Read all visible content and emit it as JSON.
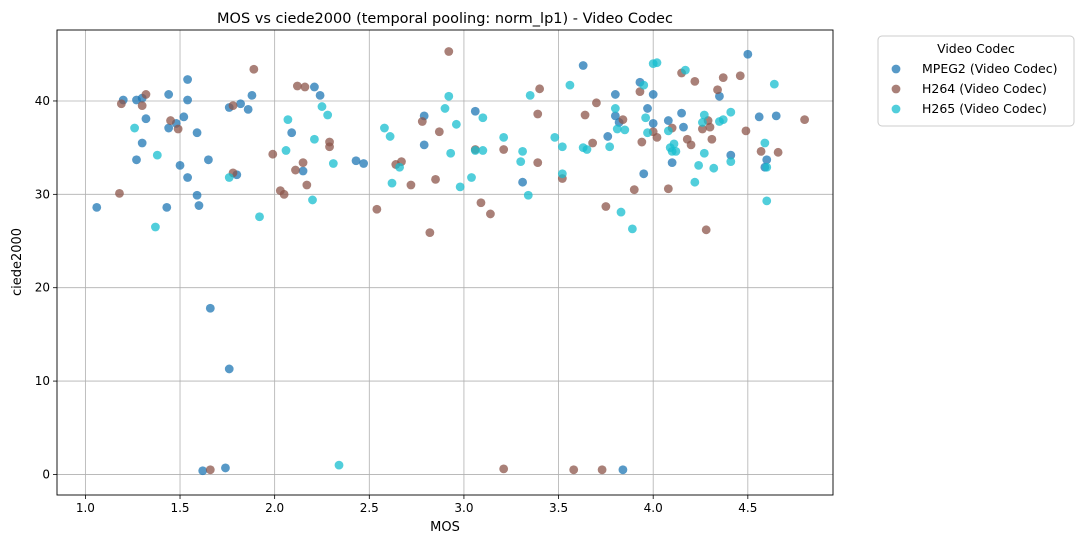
{
  "chart_data": {
    "type": "scatter",
    "title": "MOS vs ciede2000 (temporal pooling: norm_lp1) - Video Codec",
    "xlabel": "MOS",
    "ylabel": "ciede2000",
    "xlim": [
      0.85,
      4.95
    ],
    "ylim": [
      -2.2,
      47.6
    ],
    "xticks": [
      1.0,
      1.5,
      2.0,
      2.5,
      3.0,
      3.5,
      4.0,
      4.5
    ],
    "xtick_labels": [
      "1.0",
      "1.5",
      "2.0",
      "2.5",
      "3.0",
      "3.5",
      "4.0",
      "4.5"
    ],
    "yticks": [
      0,
      10,
      20,
      30,
      40
    ],
    "ytick_labels": [
      "0",
      "10",
      "20",
      "30",
      "40"
    ],
    "grid": true,
    "legend": {
      "title": "Video Codec",
      "placement": "outside-top-right"
    },
    "series": [
      {
        "name": "MPEG2 (Video Codec)",
        "color": "#1f77b4",
        "points": [
          [
            1.06,
            28.6
          ],
          [
            1.2,
            40.1
          ],
          [
            1.27,
            40.1
          ],
          [
            1.27,
            33.7
          ],
          [
            1.3,
            35.5
          ],
          [
            1.3,
            40.3
          ],
          [
            1.32,
            38.1
          ],
          [
            1.43,
            28.6
          ],
          [
            1.44,
            40.7
          ],
          [
            1.44,
            37.1
          ],
          [
            1.48,
            37.6
          ],
          [
            1.5,
            33.1
          ],
          [
            1.52,
            38.3
          ],
          [
            1.54,
            42.3
          ],
          [
            1.54,
            40.1
          ],
          [
            1.54,
            31.8
          ],
          [
            1.59,
            36.6
          ],
          [
            1.59,
            29.9
          ],
          [
            1.6,
            28.8
          ],
          [
            1.62,
            0.4
          ],
          [
            1.65,
            33.7
          ],
          [
            1.66,
            17.8
          ],
          [
            1.74,
            0.7
          ],
          [
            1.76,
            11.3
          ],
          [
            1.76,
            39.3
          ],
          [
            1.8,
            32.1
          ],
          [
            1.82,
            39.7
          ],
          [
            1.86,
            39.1
          ],
          [
            1.88,
            40.6
          ],
          [
            2.09,
            36.6
          ],
          [
            2.15,
            32.5
          ],
          [
            2.21,
            41.5
          ],
          [
            2.24,
            40.6
          ],
          [
            2.43,
            33.6
          ],
          [
            2.47,
            33.3
          ],
          [
            2.79,
            35.3
          ],
          [
            2.79,
            38.4
          ],
          [
            3.06,
            38.9
          ],
          [
            3.31,
            31.3
          ],
          [
            3.63,
            43.8
          ],
          [
            3.76,
            36.2
          ],
          [
            3.8,
            40.7
          ],
          [
            3.8,
            38.4
          ],
          [
            3.82,
            37.7
          ],
          [
            3.84,
            0.5
          ],
          [
            3.93,
            42.0
          ],
          [
            3.95,
            32.2
          ],
          [
            3.97,
            39.2
          ],
          [
            4.0,
            40.7
          ],
          [
            4.0,
            37.6
          ],
          [
            4.08,
            37.9
          ],
          [
            4.1,
            33.4
          ],
          [
            4.15,
            38.7
          ],
          [
            4.16,
            37.2
          ],
          [
            4.35,
            40.5
          ],
          [
            4.41,
            34.2
          ],
          [
            4.5,
            45.0
          ],
          [
            4.56,
            38.3
          ],
          [
            4.59,
            32.9
          ],
          [
            4.6,
            33.7
          ],
          [
            4.65,
            38.4
          ]
        ]
      },
      {
        "name": "H264 (Video Codec)",
        "color": "#8c564b",
        "points": [
          [
            1.18,
            30.1
          ],
          [
            1.19,
            39.7
          ],
          [
            1.3,
            39.5
          ],
          [
            1.32,
            40.7
          ],
          [
            1.45,
            37.9
          ],
          [
            1.49,
            37.0
          ],
          [
            1.66,
            0.5
          ],
          [
            1.78,
            39.5
          ],
          [
            1.78,
            32.3
          ],
          [
            1.89,
            43.4
          ],
          [
            1.99,
            34.3
          ],
          [
            2.03,
            30.4
          ],
          [
            2.05,
            30.0
          ],
          [
            2.11,
            32.6
          ],
          [
            2.12,
            41.6
          ],
          [
            2.15,
            33.4
          ],
          [
            2.16,
            41.5
          ],
          [
            2.17,
            31.0
          ],
          [
            2.29,
            35.6
          ],
          [
            2.29,
            35.1
          ],
          [
            2.54,
            28.4
          ],
          [
            2.64,
            33.2
          ],
          [
            2.67,
            33.5
          ],
          [
            2.72,
            31.0
          ],
          [
            2.78,
            37.8
          ],
          [
            2.82,
            25.9
          ],
          [
            2.85,
            31.6
          ],
          [
            2.87,
            36.7
          ],
          [
            2.92,
            45.3
          ],
          [
            3.06,
            34.8
          ],
          [
            3.09,
            29.1
          ],
          [
            3.14,
            27.9
          ],
          [
            3.21,
            0.6
          ],
          [
            3.21,
            34.8
          ],
          [
            3.39,
            33.4
          ],
          [
            3.39,
            38.6
          ],
          [
            3.4,
            41.3
          ],
          [
            3.52,
            31.7
          ],
          [
            3.58,
            0.5
          ],
          [
            3.64,
            38.5
          ],
          [
            3.68,
            35.5
          ],
          [
            3.7,
            39.8
          ],
          [
            3.73,
            0.5
          ],
          [
            3.75,
            28.7
          ],
          [
            3.84,
            38.0
          ],
          [
            3.9,
            30.5
          ],
          [
            3.93,
            41.0
          ],
          [
            3.94,
            35.6
          ],
          [
            4.0,
            36.7
          ],
          [
            4.02,
            36.1
          ],
          [
            4.08,
            30.6
          ],
          [
            4.1,
            37.1
          ],
          [
            4.15,
            43.0
          ],
          [
            4.18,
            35.9
          ],
          [
            4.2,
            35.3
          ],
          [
            4.22,
            42.1
          ],
          [
            4.26,
            37.0
          ],
          [
            4.28,
            26.2
          ],
          [
            4.29,
            37.9
          ],
          [
            4.3,
            37.2
          ],
          [
            4.31,
            35.9
          ],
          [
            4.34,
            41.2
          ],
          [
            4.37,
            42.5
          ],
          [
            4.46,
            42.7
          ],
          [
            4.49,
            36.8
          ],
          [
            4.57,
            34.6
          ],
          [
            4.66,
            34.5
          ],
          [
            4.8,
            38.0
          ]
        ]
      },
      {
        "name": "H265 (Video Codec)",
        "color": "#17becf",
        "points": [
          [
            1.26,
            37.1
          ],
          [
            1.37,
            26.5
          ],
          [
            1.38,
            34.2
          ],
          [
            1.76,
            31.8
          ],
          [
            1.92,
            27.6
          ],
          [
            2.06,
            34.7
          ],
          [
            2.07,
            38.0
          ],
          [
            2.2,
            29.4
          ],
          [
            2.21,
            35.9
          ],
          [
            2.25,
            39.4
          ],
          [
            2.28,
            38.5
          ],
          [
            2.31,
            33.3
          ],
          [
            2.34,
            1.0
          ],
          [
            2.58,
            37.1
          ],
          [
            2.61,
            36.2
          ],
          [
            2.62,
            31.2
          ],
          [
            2.66,
            32.9
          ],
          [
            2.9,
            39.2
          ],
          [
            2.92,
            40.5
          ],
          [
            2.93,
            34.4
          ],
          [
            2.96,
            37.5
          ],
          [
            2.98,
            30.8
          ],
          [
            3.04,
            31.8
          ],
          [
            3.06,
            34.7
          ],
          [
            3.1,
            38.2
          ],
          [
            3.1,
            34.7
          ],
          [
            3.21,
            36.1
          ],
          [
            3.3,
            33.5
          ],
          [
            3.31,
            34.6
          ],
          [
            3.34,
            29.9
          ],
          [
            3.35,
            40.6
          ],
          [
            3.48,
            36.1
          ],
          [
            3.52,
            35.1
          ],
          [
            3.52,
            32.2
          ],
          [
            3.56,
            41.7
          ],
          [
            3.63,
            35.0
          ],
          [
            3.65,
            34.8
          ],
          [
            3.77,
            35.1
          ],
          [
            3.8,
            39.2
          ],
          [
            3.81,
            37.0
          ],
          [
            3.83,
            28.1
          ],
          [
            3.85,
            36.9
          ],
          [
            3.89,
            26.3
          ],
          [
            3.95,
            41.7
          ],
          [
            3.96,
            38.2
          ],
          [
            3.97,
            36.6
          ],
          [
            4.0,
            44.0
          ],
          [
            4.02,
            44.1
          ],
          [
            4.08,
            36.8
          ],
          [
            4.09,
            35.0
          ],
          [
            4.1,
            34.6
          ],
          [
            4.11,
            35.4
          ],
          [
            4.12,
            34.6
          ],
          [
            4.17,
            43.3
          ],
          [
            4.22,
            31.3
          ],
          [
            4.24,
            33.1
          ],
          [
            4.26,
            37.7
          ],
          [
            4.27,
            38.5
          ],
          [
            4.27,
            34.4
          ],
          [
            4.32,
            32.8
          ],
          [
            4.35,
            37.8
          ],
          [
            4.37,
            38.0
          ],
          [
            4.41,
            38.8
          ],
          [
            4.41,
            33.5
          ],
          [
            4.59,
            35.5
          ],
          [
            4.6,
            29.3
          ],
          [
            4.6,
            32.9
          ],
          [
            4.64,
            41.8
          ]
        ]
      }
    ]
  }
}
